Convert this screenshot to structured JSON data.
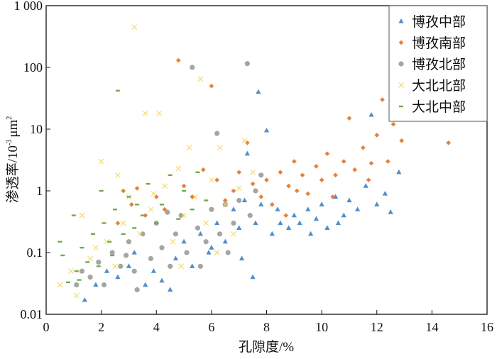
{
  "chart_data": {
    "type": "scatter",
    "title": "",
    "xlabel": "孔隙度/%",
    "ylabel": "渗透率/10",
    "ylabel_sup": "-3",
    "ylabel_unit": "μm",
    "ylabel_unit_sup": "2",
    "xlim": [
      0,
      16
    ],
    "ylim": [
      0.01,
      1000
    ],
    "yscale": "log",
    "x_ticks": [
      0,
      2,
      4,
      6,
      8,
      10,
      12,
      14,
      16
    ],
    "x_tick_labels": [
      "0",
      "2",
      "4",
      "6",
      "8",
      "10",
      "12",
      "14",
      "16"
    ],
    "y_ticks": [
      0.01,
      0.1,
      1,
      10,
      100,
      1000
    ],
    "y_tick_labels": [
      "0.01",
      "0.1",
      "1",
      "10",
      "100",
      "1 000"
    ],
    "grid": false,
    "legend_position": "top-right",
    "series": [
      {
        "name": "博孜中部",
        "marker": "triangle",
        "color": "#4a8fd6",
        "points": [
          [
            1.4,
            0.017
          ],
          [
            1.8,
            0.03
          ],
          [
            2.2,
            0.05
          ],
          [
            2.6,
            0.04
          ],
          [
            3.0,
            0.06
          ],
          [
            3.2,
            0.1
          ],
          [
            3.6,
            0.03
          ],
          [
            3.9,
            0.05
          ],
          [
            4.2,
            0.035
          ],
          [
            4.5,
            0.025
          ],
          [
            4.7,
            0.08
          ],
          [
            5.0,
            0.15
          ],
          [
            5.3,
            0.06
          ],
          [
            5.6,
            0.2
          ],
          [
            5.9,
            0.1
          ],
          [
            6.2,
            0.3
          ],
          [
            6.5,
            0.15
          ],
          [
            6.8,
            0.5
          ],
          [
            7.0,
            0.25
          ],
          [
            7.2,
            0.7
          ],
          [
            7.3,
            4
          ],
          [
            7.5,
            0.04
          ],
          [
            7.6,
            0.3
          ],
          [
            7.7,
            40
          ],
          [
            7.8,
            0.6
          ],
          [
            8.0,
            9.5
          ],
          [
            8.2,
            0.2
          ],
          [
            8.5,
            0.3
          ],
          [
            8.8,
            0.25
          ],
          [
            9.0,
            0.4
          ],
          [
            9.2,
            0.3
          ],
          [
            9.5,
            0.5
          ],
          [
            9.8,
            0.35
          ],
          [
            10.0,
            0.6
          ],
          [
            10.2,
            0.25
          ],
          [
            10.5,
            0.8
          ],
          [
            10.8,
            0.4
          ],
          [
            11.0,
            0.7
          ],
          [
            11.3,
            0.5
          ],
          [
            11.6,
            1.2
          ],
          [
            11.8,
            17
          ],
          [
            12.0,
            0.6
          ],
          [
            12.3,
            0.9
          ],
          [
            12.5,
            0.45
          ],
          [
            12.8,
            2
          ],
          [
            7.1,
            0.08
          ],
          [
            6.0,
            0.12
          ],
          [
            8.4,
            0.5
          ],
          [
            9.6,
            0.2
          ],
          [
            10.6,
            0.3
          ]
        ]
      },
      {
        "name": "博孜南部",
        "marker": "diamond",
        "color": "#ee7d31",
        "points": [
          [
            2.6,
            0.3
          ],
          [
            2.8,
            1.0
          ],
          [
            3.1,
            0.6
          ],
          [
            3.3,
            1.1
          ],
          [
            3.6,
            0.4
          ],
          [
            4.0,
            0.8
          ],
          [
            4.3,
            0.5
          ],
          [
            4.8,
            130
          ],
          [
            5.0,
            1.2
          ],
          [
            5.3,
            0.8
          ],
          [
            5.7,
            2.2
          ],
          [
            6.0,
            50
          ],
          [
            6.2,
            1.5
          ],
          [
            6.5,
            0.7
          ],
          [
            6.8,
            1.0
          ],
          [
            7.0,
            2.0
          ],
          [
            7.3,
            6
          ],
          [
            7.5,
            1.3
          ],
          [
            7.8,
            0.8
          ],
          [
            8.0,
            1.5
          ],
          [
            8.2,
            0.6
          ],
          [
            8.5,
            2.0
          ],
          [
            8.8,
            1.2
          ],
          [
            9.0,
            3.0
          ],
          [
            9.3,
            1.8
          ],
          [
            9.5,
            0.9
          ],
          [
            9.8,
            2.5
          ],
          [
            10.0,
            1.5
          ],
          [
            10.2,
            4
          ],
          [
            10.5,
            1.8
          ],
          [
            10.8,
            3
          ],
          [
            11.0,
            15
          ],
          [
            11.2,
            2.2
          ],
          [
            11.5,
            5
          ],
          [
            11.7,
            1.5
          ],
          [
            12.0,
            8
          ],
          [
            12.2,
            30
          ],
          [
            12.4,
            3
          ],
          [
            12.6,
            12
          ],
          [
            12.9,
            6.5
          ],
          [
            14.6,
            6
          ],
          [
            8.7,
            0.4
          ],
          [
            9.1,
            1.0
          ],
          [
            10.4,
            0.8
          ],
          [
            11.8,
            2.8
          ]
        ]
      },
      {
        "name": "博孜北部",
        "marker": "circle",
        "color": "#a5a5a5",
        "points": [
          [
            1.1,
            0.03
          ],
          [
            1.3,
            0.05
          ],
          [
            1.6,
            0.04
          ],
          [
            1.9,
            0.07
          ],
          [
            2.1,
            0.03
          ],
          [
            2.4,
            0.1
          ],
          [
            2.7,
            0.06
          ],
          [
            3.0,
            0.15
          ],
          [
            3.2,
            0.05
          ],
          [
            3.5,
            0.2
          ],
          [
            3.8,
            0.08
          ],
          [
            4.0,
            0.3
          ],
          [
            4.2,
            0.12
          ],
          [
            4.5,
            0.06
          ],
          [
            4.7,
            0.2
          ],
          [
            4.9,
            0.4
          ],
          [
            5.1,
            0.1
          ],
          [
            5.3,
            100
          ],
          [
            5.5,
            0.25
          ],
          [
            5.8,
            0.15
          ],
          [
            6.0,
            0.5
          ],
          [
            6.2,
            8.5
          ],
          [
            6.3,
            0.2
          ],
          [
            6.6,
            0.1
          ],
          [
            6.8,
            0.3
          ],
          [
            7.0,
            0.7
          ],
          [
            7.3,
            115
          ],
          [
            7.4,
            0.4
          ],
          [
            7.6,
            1.0
          ],
          [
            7.8,
            1.8
          ],
          [
            3.3,
            0.025
          ],
          [
            4.4,
            0.45
          ],
          [
            5.6,
            0.06
          ],
          [
            6.5,
            0.6
          ],
          [
            2.9,
            0.09
          ]
        ]
      },
      {
        "name": "大北北部",
        "marker": "cross",
        "color": "#ffd54f",
        "points": [
          [
            0.5,
            0.03
          ],
          [
            0.9,
            0.05
          ],
          [
            1.1,
            0.02
          ],
          [
            1.3,
            0.4
          ],
          [
            1.6,
            0.08
          ],
          [
            2.0,
            3
          ],
          [
            2.2,
            0.15
          ],
          [
            2.5,
            0.06
          ],
          [
            2.8,
            0.3
          ],
          [
            3.0,
            0.8
          ],
          [
            3.2,
            450
          ],
          [
            3.4,
            0.2
          ],
          [
            3.6,
            18
          ],
          [
            3.8,
            0.5
          ],
          [
            4.1,
            18
          ],
          [
            4.3,
            1.2
          ],
          [
            4.6,
            0.15
          ],
          [
            4.8,
            2.3
          ],
          [
            5.0,
            0.4
          ],
          [
            5.2,
            5
          ],
          [
            5.4,
            0.8
          ],
          [
            5.6,
            65
          ],
          [
            5.8,
            0.3
          ],
          [
            6.0,
            1.5
          ],
          [
            6.2,
            0.1
          ],
          [
            6.5,
            0.6
          ],
          [
            6.8,
            0.2
          ],
          [
            7.0,
            1.1
          ],
          [
            7.2,
            6.5
          ],
          [
            7.5,
            2
          ],
          [
            1.8,
            0.12
          ],
          [
            2.6,
            1.8
          ],
          [
            3.9,
            0.9
          ],
          [
            4.9,
            0.06
          ],
          [
            6.3,
            5
          ]
        ]
      },
      {
        "name": "大北中部",
        "marker": "dash",
        "color": "#70ad47",
        "points": [
          [
            0.5,
            0.15
          ],
          [
            0.6,
            0.09
          ],
          [
            0.8,
            0.033
          ],
          [
            1.0,
            0.4
          ],
          [
            1.1,
            0.05
          ],
          [
            1.3,
            0.12
          ],
          [
            1.5,
            0.07
          ],
          [
            1.7,
            0.2
          ],
          [
            1.9,
            0.06
          ],
          [
            2.0,
            1.0
          ],
          [
            2.1,
            0.3
          ],
          [
            2.3,
            0.15
          ],
          [
            2.5,
            0.5
          ],
          [
            2.6,
            42
          ],
          [
            2.8,
            0.2
          ],
          [
            3.0,
            0.8
          ],
          [
            3.2,
            0.25
          ],
          [
            3.5,
            0.4
          ],
          [
            3.7,
            1.3
          ],
          [
            4.0,
            0.3
          ],
          [
            4.2,
            0.6
          ],
          [
            4.5,
            1.8
          ],
          [
            4.8,
            0.35
          ],
          [
            5.0,
            1.0
          ],
          [
            5.3,
            0.5
          ],
          [
            5.5,
            2.0
          ],
          [
            5.8,
            0.7
          ],
          [
            1.2,
            0.036
          ],
          [
            2.4,
            0.09
          ],
          [
            3.3,
            0.6
          ]
        ]
      }
    ]
  }
}
